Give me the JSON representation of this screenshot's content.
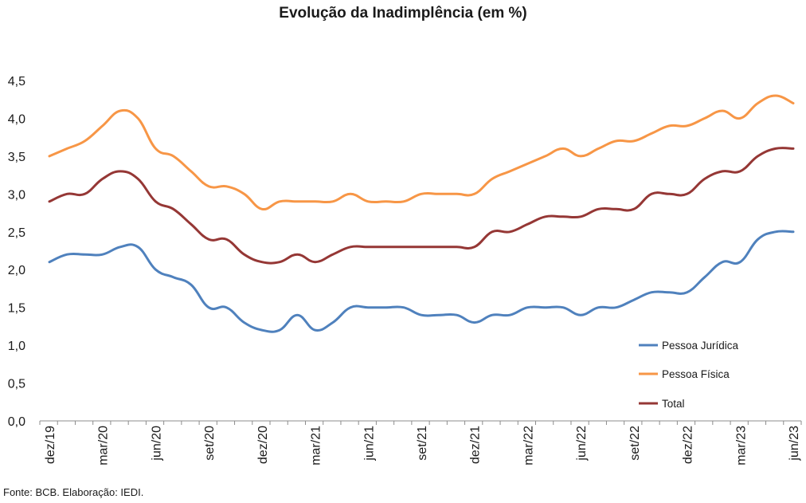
{
  "chart_data": {
    "type": "line",
    "title": "Evolução da Inadimplência (em %)",
    "xlabel": "",
    "ylabel": "",
    "ylim": [
      0,
      4.5
    ],
    "yticks": [
      "0,0",
      "0,5",
      "1,0",
      "1,5",
      "2,0",
      "2,5",
      "3,0",
      "3,5",
      "4,0",
      "4,5"
    ],
    "x_tick_labels": [
      {
        "index": 0,
        "label": "dez/19"
      },
      {
        "index": 3,
        "label": "mar/20"
      },
      {
        "index": 6,
        "label": "jun/20"
      },
      {
        "index": 9,
        "label": "set/20"
      },
      {
        "index": 12,
        "label": "dez/20"
      },
      {
        "index": 15,
        "label": "mar/21"
      },
      {
        "index": 18,
        "label": "jun/21"
      },
      {
        "index": 21,
        "label": "set/21"
      },
      {
        "index": 24,
        "label": "dez/21"
      },
      {
        "index": 27,
        "label": "mar/22"
      },
      {
        "index": 30,
        "label": "jun/22"
      },
      {
        "index": 33,
        "label": "set/22"
      },
      {
        "index": 36,
        "label": "dez/22"
      },
      {
        "index": 39,
        "label": "mar/23"
      },
      {
        "index": 42,
        "label": "jun/23"
      }
    ],
    "grid": false,
    "legend_position": "right",
    "series": [
      {
        "name": "Pessoa Jurídica",
        "color": "#4f81bd",
        "values": [
          2.1,
          2.2,
          2.2,
          2.2,
          2.3,
          2.3,
          2.0,
          1.9,
          1.8,
          1.5,
          1.5,
          1.3,
          1.2,
          1.2,
          1.4,
          1.2,
          1.3,
          1.5,
          1.5,
          1.5,
          1.5,
          1.4,
          1.4,
          1.4,
          1.3,
          1.4,
          1.4,
          1.5,
          1.5,
          1.5,
          1.4,
          1.5,
          1.5,
          1.6,
          1.7,
          1.7,
          1.7,
          1.9,
          2.1,
          2.1,
          2.4,
          2.5,
          2.5
        ]
      },
      {
        "name": "Pessoa Física",
        "color": "#f79646",
        "values": [
          3.5,
          3.6,
          3.7,
          3.9,
          4.1,
          4.0,
          3.6,
          3.5,
          3.3,
          3.1,
          3.1,
          3.0,
          2.8,
          2.9,
          2.9,
          2.9,
          2.9,
          3.0,
          2.9,
          2.9,
          2.9,
          3.0,
          3.0,
          3.0,
          3.0,
          3.2,
          3.3,
          3.4,
          3.5,
          3.6,
          3.5,
          3.6,
          3.7,
          3.7,
          3.8,
          3.9,
          3.9,
          4.0,
          4.1,
          4.0,
          4.2,
          4.3,
          4.2
        ]
      },
      {
        "name": "Total",
        "color": "#953735",
        "values": [
          2.9,
          3.0,
          3.0,
          3.2,
          3.3,
          3.2,
          2.9,
          2.8,
          2.6,
          2.4,
          2.4,
          2.2,
          2.1,
          2.1,
          2.2,
          2.1,
          2.2,
          2.3,
          2.3,
          2.3,
          2.3,
          2.3,
          2.3,
          2.3,
          2.3,
          2.5,
          2.5,
          2.6,
          2.7,
          2.7,
          2.7,
          2.8,
          2.8,
          2.8,
          3.0,
          3.0,
          3.0,
          3.2,
          3.3,
          3.3,
          3.5,
          3.6,
          3.6
        ]
      }
    ]
  },
  "source": "Fonte: BCB. Elaboração: IEDI."
}
